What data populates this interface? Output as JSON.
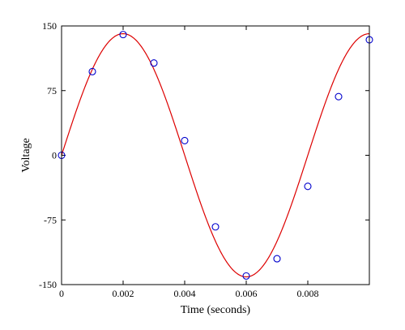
{
  "chart_data": {
    "type": "scatter",
    "title": "",
    "xlabel": "Time (seconds)",
    "ylabel": "Voltage",
    "xlim": [
      0,
      0.01
    ],
    "ylim": [
      -150,
      150
    ],
    "x_ticks": [
      0,
      0.002,
      0.004,
      0.006,
      0.008
    ],
    "x_tick_labels": [
      "0",
      "0.002",
      "0.004",
      "0.006",
      "0.008"
    ],
    "y_ticks": [
      -150,
      -75,
      0,
      75,
      150
    ],
    "y_tick_labels": [
      "-150",
      "-75",
      "0",
      "75",
      "150"
    ],
    "grid": false,
    "legend": "none",
    "series": [
      {
        "kind": "points",
        "marker": "circle",
        "color": "#0000cc",
        "x": [
          0,
          0.001,
          0.002,
          0.003,
          0.004,
          0.005,
          0.006,
          0.007,
          0.008,
          0.009,
          0.01
        ],
        "y": [
          0,
          97,
          140,
          107,
          17,
          -83,
          -140,
          -120,
          -36,
          68,
          134
        ]
      },
      {
        "kind": "curve",
        "color": "#dd0000",
        "function": "sine",
        "amplitude": 141,
        "frequency": 125,
        "phase": 0
      }
    ]
  }
}
